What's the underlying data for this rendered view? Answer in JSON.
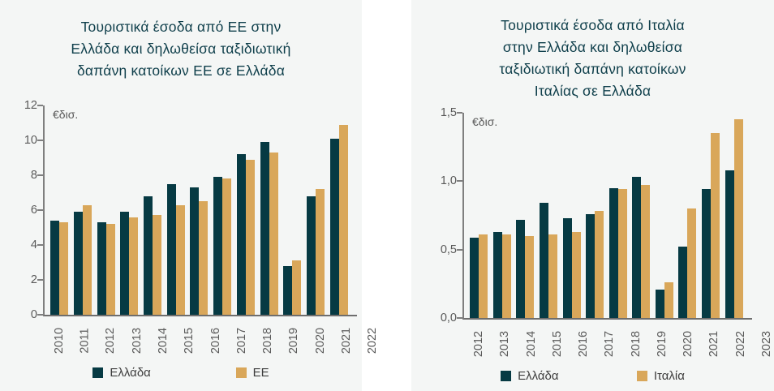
{
  "page": {
    "background": "#ffffff",
    "panel_background": "#f4f6f5",
    "title_color": "#0f3f4b",
    "axis_color": "#7f7f7f",
    "tick_text_color": "#595959",
    "legend_text_color": "#3d3d3d"
  },
  "chart_data": [
    {
      "type": "bar",
      "title": "Τουριστικά έσοδα από ΕΕ στην Ελλάδα και δηλωθείσα ταξιδιωτική δαπάνη κατοίκων ΕΕ σε Ελλάδα",
      "title_lines": [
        "Τουριστικά έσοδα από ΕΕ στην",
        "Ελλάδα και δηλωθείσα ταξιδιωτική",
        "δαπάνη κατοίκων ΕΕ σε Ελλάδα"
      ],
      "unit_label": "€δισ.",
      "categories": [
        "2010",
        "2011",
        "2012",
        "2013",
        "2014",
        "2015",
        "2016",
        "2017",
        "2018",
        "2019",
        "2020",
        "2021",
        "2022"
      ],
      "series": [
        {
          "name": "Ελλάδα",
          "color": "#063a43",
          "values": [
            5.4,
            5.9,
            5.3,
            5.9,
            6.8,
            7.5,
            7.3,
            7.9,
            9.2,
            9.9,
            2.8,
            6.8,
            10.1
          ]
        },
        {
          "name": "ΕΕ",
          "color": "#d9a75a",
          "values": [
            5.3,
            6.3,
            5.2,
            5.6,
            5.7,
            6.3,
            6.5,
            7.8,
            8.9,
            9.3,
            3.1,
            7.2,
            10.9
          ]
        }
      ],
      "xlabel": "",
      "ylabel": "",
      "ylim": [
        0,
        12
      ],
      "yticks": [
        0,
        2,
        4,
        6,
        8,
        10,
        12
      ],
      "ytick_labels": [
        "0",
        "2",
        "4",
        "6",
        "8",
        "10",
        "12"
      ],
      "grid": false,
      "legend_position": "bottom"
    },
    {
      "type": "bar",
      "title": "Τουριστικά έσοδα από Ιταλία στην Ελλάδα και δηλωθείσα ταξιδιωτική δαπάνη κατοίκων Ιταλίας σε Ελλάδα",
      "title_lines": [
        "Τουριστικά έσοδα από Ιταλία",
        "στην Ελλάδα και δηλωθείσα",
        "ταξιδιωτική δαπάνη κατοίκων",
        "Ιταλίας σε Ελλάδα"
      ],
      "unit_label": "€δισ.",
      "categories": [
        "2012",
        "2013",
        "2014",
        "2015",
        "2016",
        "2017",
        "2018",
        "2019",
        "2020",
        "2021",
        "2022",
        "2023"
      ],
      "series": [
        {
          "name": "Ελλάδα",
          "color": "#063a43",
          "values": [
            0.59,
            0.63,
            0.72,
            0.84,
            0.73,
            0.76,
            0.95,
            1.03,
            0.21,
            0.52,
            0.94,
            1.08
          ]
        },
        {
          "name": "Ιταλία",
          "color": "#d9a75a",
          "values": [
            0.61,
            0.61,
            0.6,
            0.61,
            0.63,
            0.78,
            0.94,
            0.97,
            0.26,
            0.8,
            1.35,
            1.45
          ]
        }
      ],
      "xlabel": "",
      "ylabel": "",
      "ylim": [
        0,
        1.5
      ],
      "yticks": [
        0,
        0.5,
        1.0,
        1.5
      ],
      "ytick_labels": [
        "0,0",
        "0,5",
        "1,0",
        "1,5"
      ],
      "grid": false,
      "legend_position": "bottom"
    }
  ]
}
